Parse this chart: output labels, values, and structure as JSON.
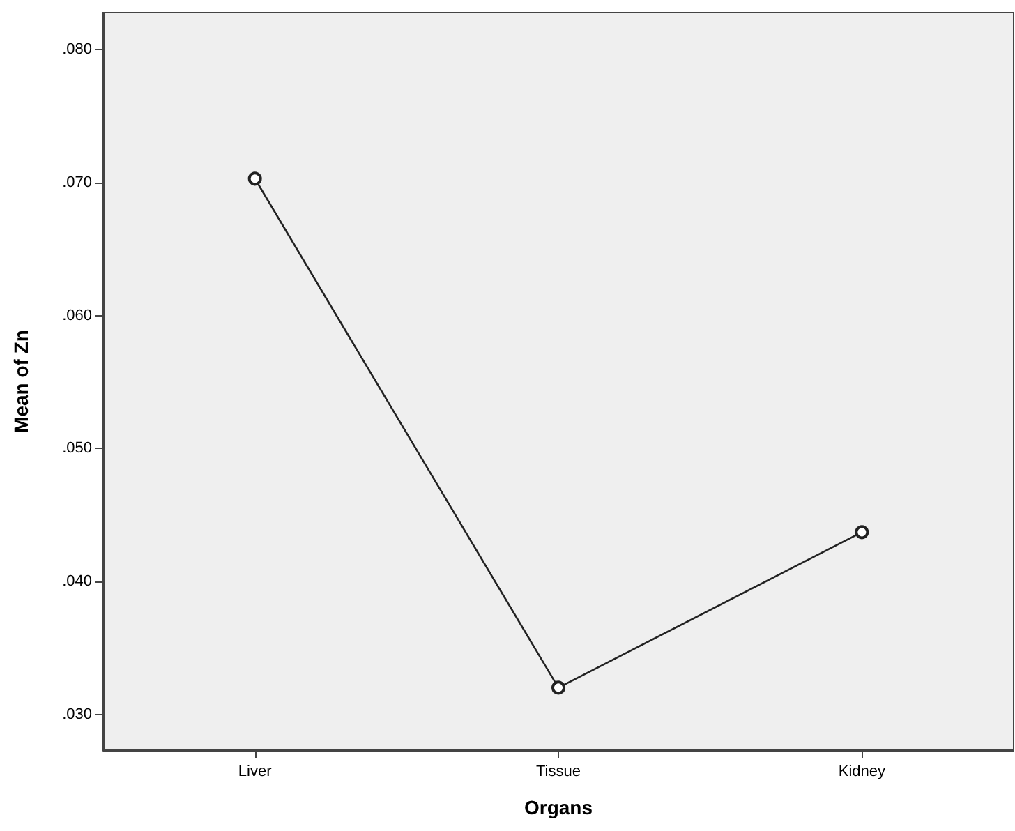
{
  "chart_data": {
    "type": "line",
    "xlabel": "Organs",
    "ylabel": "Mean of Zn",
    "categories": [
      "Liver",
      "Tissue",
      "Kidney"
    ],
    "series": [
      {
        "color": "#222222",
        "values": [
          0.0703,
          0.032,
          0.0437
        ]
      }
    ],
    "ylim": [
      0.0273,
      0.0828
    ],
    "yticks": [
      {
        "value": 0.03,
        "label": ".030"
      },
      {
        "value": 0.04,
        "label": ".040"
      },
      {
        "value": 0.05,
        "label": ".050"
      },
      {
        "value": 0.06,
        "label": ".060"
      },
      {
        "value": 0.07,
        "label": ".070"
      },
      {
        "value": 0.08,
        "label": ".080"
      }
    ],
    "marker": "circle",
    "line_style": "solid",
    "grid": false
  }
}
